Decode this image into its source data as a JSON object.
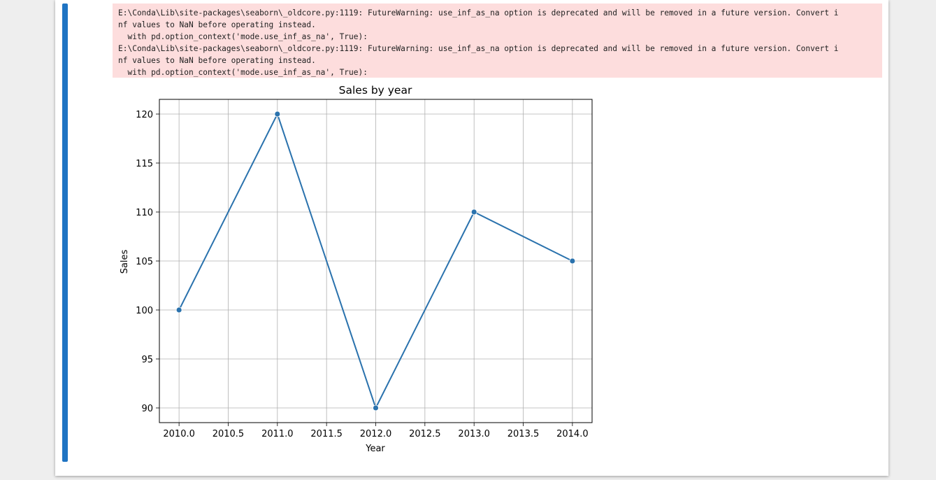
{
  "output": {
    "stderr_lines": [
      "E:\\Conda\\Lib\\site-packages\\seaborn\\_oldcore.py:1119: FutureWarning: use_inf_as_na option is deprecated and will be removed in a future version. Convert i",
      "nf values to NaN before operating instead.",
      "  with pd.option_context('mode.use_inf_as_na', True):",
      "E:\\Conda\\Lib\\site-packages\\seaborn\\_oldcore.py:1119: FutureWarning: use_inf_as_na option is deprecated and will be removed in a future version. Convert i",
      "nf values to NaN before operating instead.",
      "  with pd.option_context('mode.use_inf_as_na', True):"
    ]
  },
  "colors": {
    "line": "#2a72ad",
    "stderr_background": "#fddddd",
    "cell_bar": "#1f74c3"
  },
  "chart_data": {
    "type": "line",
    "title": "Sales by year",
    "xlabel": "Year",
    "ylabel": "Sales",
    "x": [
      2010,
      2011,
      2012,
      2013,
      2014
    ],
    "series": [
      {
        "values": [
          100,
          120,
          90,
          110,
          105
        ],
        "marker": "circle"
      }
    ],
    "xticks": [
      "2010.0",
      "2010.5",
      "2011.0",
      "2011.5",
      "2012.0",
      "2012.5",
      "2013.0",
      "2013.5",
      "2014.0"
    ],
    "yticks": [
      "90",
      "95",
      "100",
      "105",
      "110",
      "115",
      "120"
    ],
    "xlim": [
      2009.8,
      2014.2
    ],
    "ylim": [
      88.5,
      121.5
    ],
    "grid": true
  }
}
